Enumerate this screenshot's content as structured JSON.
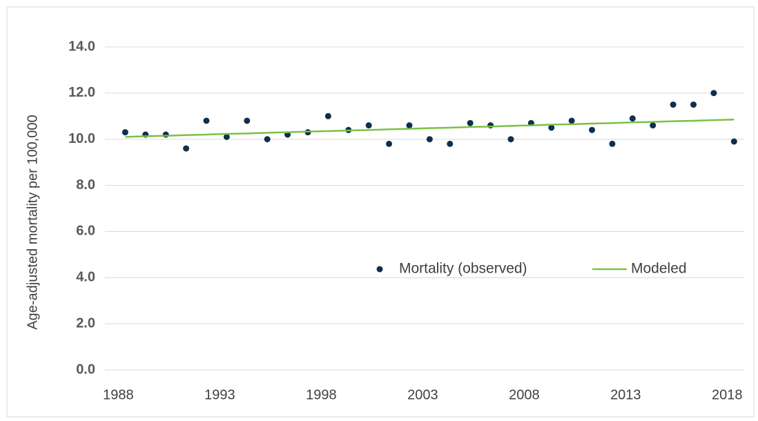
{
  "chart_data": {
    "type": "scatter+line",
    "y_label": "Age-adjusted mortality per 100,000",
    "x": [
      1988,
      1989,
      1990,
      1991,
      1992,
      1993,
      1994,
      1995,
      1996,
      1997,
      1998,
      1999,
      2000,
      2001,
      2002,
      2003,
      2004,
      2005,
      2006,
      2007,
      2008,
      2009,
      2010,
      2011,
      2012,
      2013,
      2014,
      2015,
      2016,
      2017,
      2018
    ],
    "series": [
      {
        "name": "Mortality (observed)",
        "type": "scatter",
        "color": "#0e2f4f",
        "values": [
          10.3,
          10.2,
          10.2,
          9.6,
          10.8,
          10.1,
          10.8,
          10.0,
          10.2,
          10.3,
          11.0,
          10.4,
          10.6,
          9.8,
          10.6,
          10.0,
          9.8,
          10.7,
          10.6,
          10.0,
          10.7,
          10.5,
          10.8,
          10.4,
          9.8,
          10.9,
          10.6,
          11.5,
          11.5,
          12.0,
          9.9
        ]
      },
      {
        "name": "Modeled",
        "type": "line",
        "color": "#7ac143",
        "values": [
          10.1,
          10.13,
          10.15,
          10.18,
          10.2,
          10.23,
          10.25,
          10.28,
          10.3,
          10.33,
          10.35,
          10.38,
          10.4,
          10.43,
          10.45,
          10.48,
          10.5,
          10.53,
          10.55,
          10.58,
          10.6,
          10.63,
          10.65,
          10.68,
          10.7,
          10.73,
          10.75,
          10.78,
          10.8,
          10.83,
          10.85
        ]
      }
    ],
    "xlim": [
      1987,
      2018.5
    ],
    "xticks": [
      1988,
      1993,
      1998,
      2003,
      2008,
      2013,
      2018
    ],
    "ylim": [
      0,
      14
    ],
    "yticks": [
      {
        "value": 0,
        "label": "0.0"
      },
      {
        "value": 2,
        "label": "2.0"
      },
      {
        "value": 4,
        "label": "4.0"
      },
      {
        "value": 6,
        "label": "6.0"
      },
      {
        "value": 8,
        "label": "8.0"
      },
      {
        "value": 10,
        "label": "10.0"
      },
      {
        "value": 12,
        "label": "12.0"
      },
      {
        "value": 14,
        "label": "14.0"
      }
    ],
    "grid": true
  }
}
